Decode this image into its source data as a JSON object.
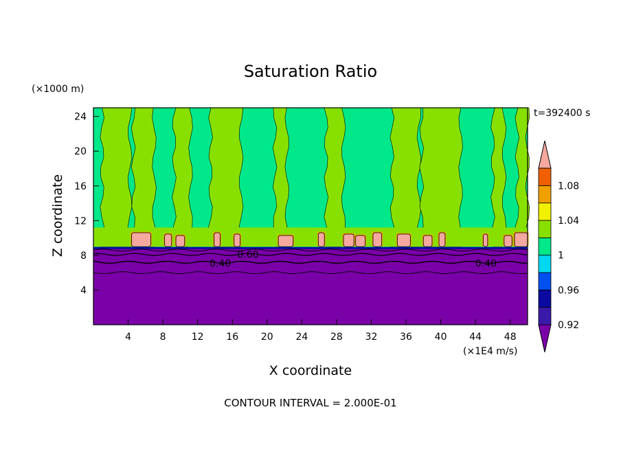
{
  "chart_data": {
    "type": "heatmap",
    "title": "Saturation Ratio",
    "xlabel": "X coordinate",
    "ylabel": "Z coordinate",
    "x_unit": "(×1E4 m/s)",
    "y_unit": "(×1000 m)",
    "time_label": "t=392400 s",
    "footer": "CONTOUR INTERVAL = 2.000E-01",
    "xlim": [
      0,
      50
    ],
    "ylim": [
      0,
      25
    ],
    "x_ticks": [
      4,
      8,
      12,
      16,
      20,
      24,
      28,
      32,
      36,
      40,
      44,
      48
    ],
    "y_ticks": [
      4,
      8,
      12,
      16,
      20,
      24
    ],
    "x_tick_labels": [
      "4",
      "8",
      "12",
      "16",
      "20",
      "24",
      "28",
      "32",
      "36",
      "40",
      "44",
      "48"
    ],
    "y_tick_labels": [
      "4",
      "8",
      "12",
      "16",
      "20",
      "24"
    ],
    "colorbar": {
      "levels": [
        0.92,
        0.94,
        0.96,
        0.98,
        1.0,
        1.02,
        1.04,
        1.06,
        1.08,
        1.1
      ],
      "tick_labels": [
        "0.92",
        "0.96",
        "1",
        "1.04",
        "1.08"
      ],
      "tick_values": [
        0.92,
        0.96,
        1.0,
        1.04,
        1.08
      ],
      "colors": [
        "#7a00a8",
        "#3a1aa8",
        "#0a0aa0",
        "#0050f0",
        "#00d8f0",
        "#00e88a",
        "#88e000",
        "#f0f000",
        "#f0a000",
        "#f06000",
        "#f02020",
        "#f4a8a0"
      ]
    },
    "contour_labels": [
      {
        "text": "0.40",
        "x": 14.6,
        "y": 7.1
      },
      {
        "text": "0.60",
        "x": 17.8,
        "y": 8.1
      },
      {
        "text": "0.40",
        "x": 45.2,
        "y": 7.1
      }
    ],
    "regions": {
      "lower_layer_top_z": 8.8,
      "lower_layer_value": "< 0.92",
      "cloud_layer_z": [
        9.0,
        10.6
      ],
      "cloud_layer_value": "> 1.10",
      "upper_light_green_bands_x": [
        [
          1.0,
          4.2
        ],
        [
          4.6,
          7.0
        ],
        [
          9.3,
          11.2
        ],
        [
          13.5,
          17.0
        ],
        [
          20.9,
          22.3
        ],
        [
          26.8,
          28.8
        ],
        [
          34.4,
          37.5
        ],
        [
          37.8,
          42.3
        ],
        [
          46.0,
          47.3
        ],
        [
          48.8,
          50.0
        ]
      ],
      "cloud_patches_x": [
        [
          4.4,
          6.6
        ],
        [
          8.2,
          9.0
        ],
        [
          9.5,
          10.5
        ],
        [
          13.9,
          14.6
        ],
        [
          16.2,
          16.9
        ],
        [
          21.3,
          23.0
        ],
        [
          25.9,
          26.6
        ],
        [
          28.8,
          30.0
        ],
        [
          30.2,
          31.3
        ],
        [
          32.2,
          33.2
        ],
        [
          35.0,
          36.5
        ],
        [
          38.0,
          39.0
        ],
        [
          39.8,
          40.5
        ],
        [
          44.9,
          45.4
        ],
        [
          47.3,
          48.2
        ],
        [
          48.5,
          50.0
        ]
      ]
    }
  }
}
